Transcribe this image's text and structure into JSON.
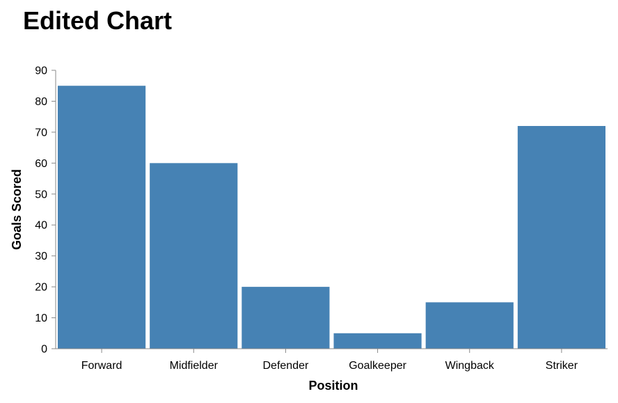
{
  "chart_data": {
    "type": "bar",
    "title": "Edited Chart",
    "xlabel": "Position",
    "ylabel": "Goals Scored",
    "categories": [
      "Forward",
      "Midfielder",
      "Defender",
      "Goalkeeper",
      "Wingback",
      "Striker"
    ],
    "values": [
      85,
      60,
      20,
      5,
      15,
      72
    ],
    "ylim": [
      0,
      90
    ],
    "yticks": [
      "0",
      "10",
      "20",
      "30",
      "40",
      "50",
      "60",
      "70",
      "80",
      "90"
    ],
    "grid": false,
    "bar_color": "#4682b4"
  }
}
